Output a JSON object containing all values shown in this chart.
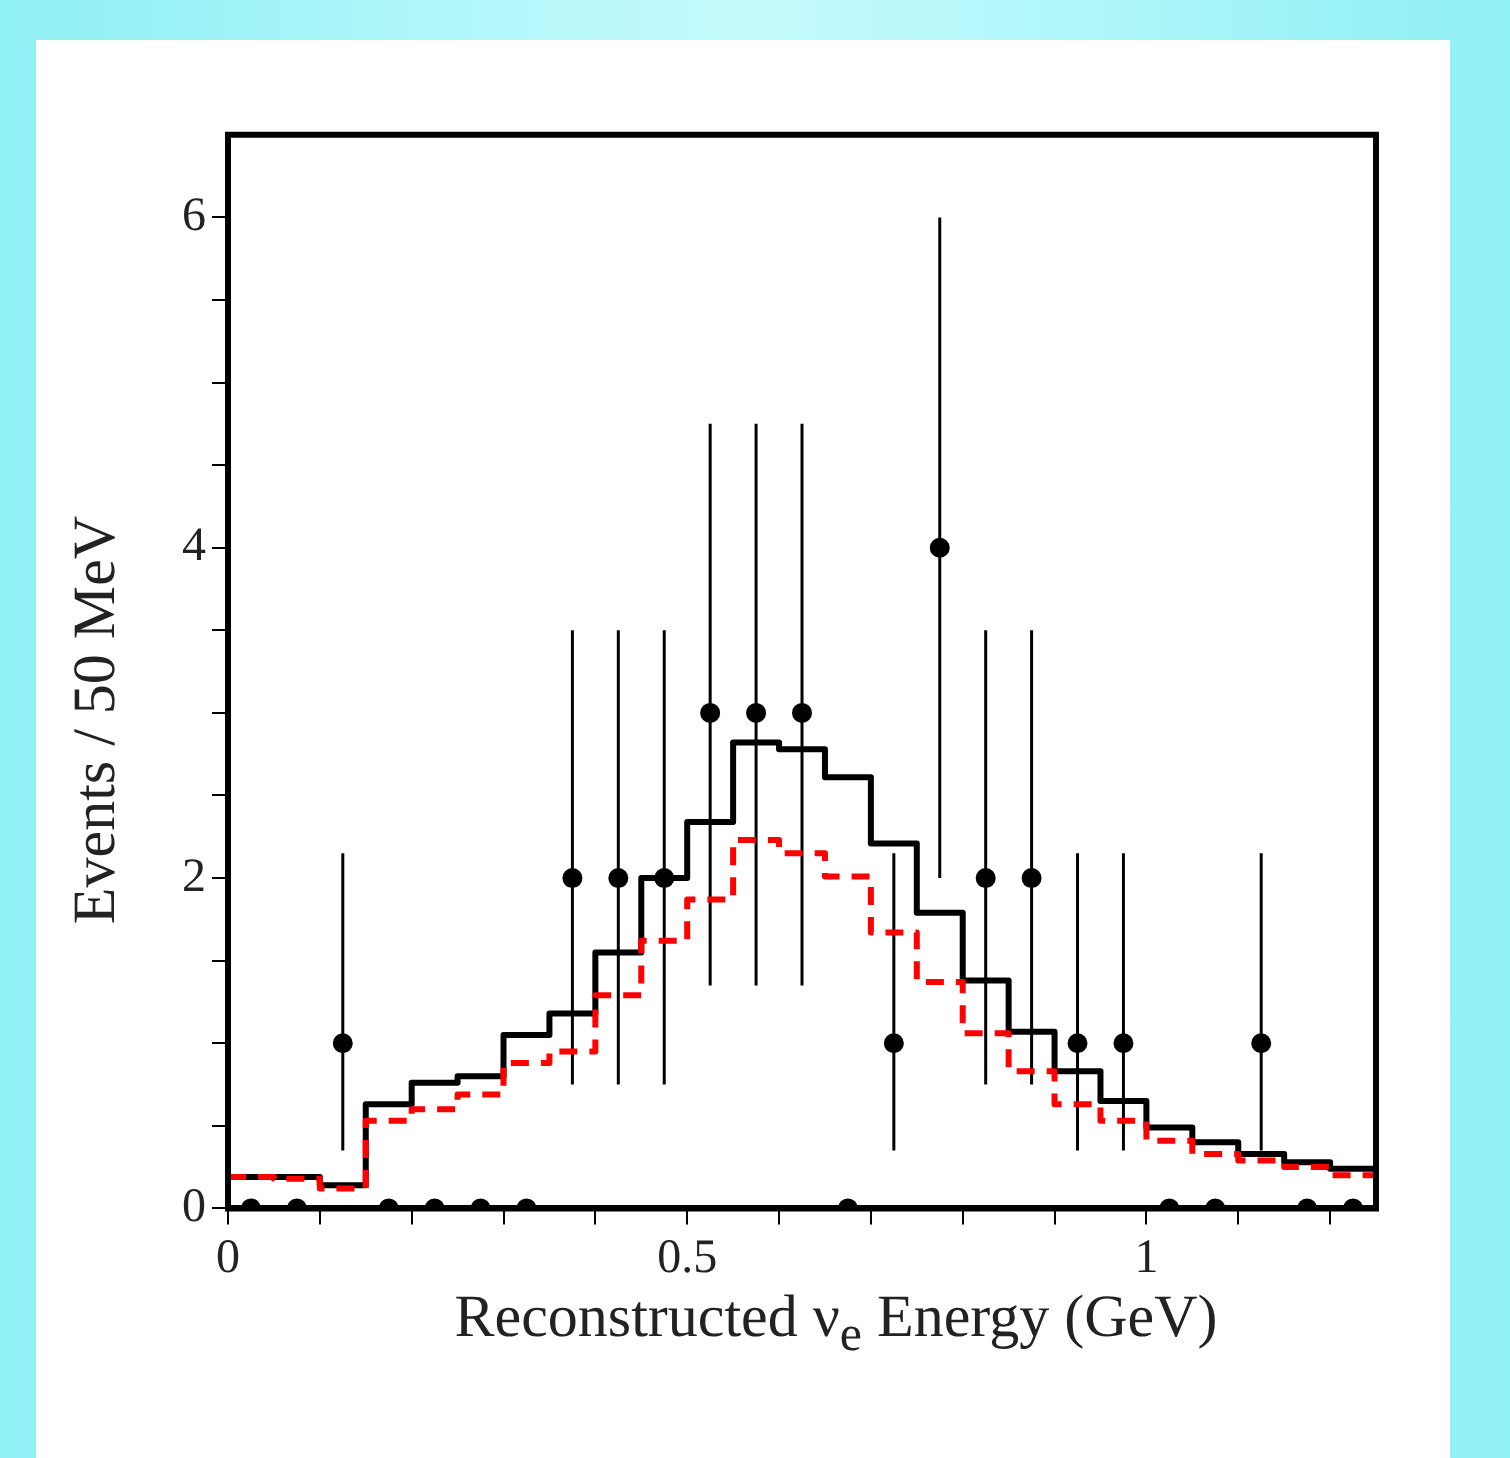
{
  "chart_data": {
    "type": "histogram",
    "xlabel": "Reconstructed ν$_{e}$ Energy (GeV)",
    "ylabel": "Events / 50 MeV",
    "bins": [
      0,
      0.05,
      0.1,
      0.15,
      0.2,
      0.25,
      0.3,
      0.35,
      0.4,
      0.45,
      0.5,
      0.55,
      0.6,
      0.65,
      0.7,
      0.75,
      0.8,
      0.85,
      0.9,
      0.95,
      1,
      1.05,
      1.1,
      1.15,
      1.2,
      1.25
    ],
    "series": [
      {
        "color": "#000000",
        "line_style": "solid",
        "values": [
          0.19,
          0.19,
          0.14,
          0.63,
          0.76,
          0.8,
          1.05,
          1.18,
          1.55,
          2.0,
          2.34,
          2.82,
          2.78,
          2.61,
          2.21,
          1.79,
          1.38,
          1.07,
          0.83,
          0.65,
          0.49,
          0.4,
          0.33,
          0.28,
          0.24
        ]
      },
      {
        "color": "#ff0000",
        "line_style": "dashed",
        "values": [
          0.19,
          0.18,
          0.12,
          0.53,
          0.6,
          0.69,
          0.88,
          0.95,
          1.29,
          1.62,
          1.87,
          2.23,
          2.15,
          2.01,
          1.67,
          1.37,
          1.06,
          0.83,
          0.63,
          0.53,
          0.41,
          0.33,
          0.29,
          0.25,
          0.2
        ]
      },
      {
        "type": "scatter",
        "color": "#000000",
        "marker": "circle",
        "x": [
          0.025,
          0.075,
          0.125,
          0.175,
          0.225,
          0.275,
          0.325,
          0.375,
          0.425,
          0.475,
          0.525,
          0.575,
          0.625,
          0.675,
          0.725,
          0.775,
          0.825,
          0.875,
          0.925,
          0.975,
          1.025,
          1.075,
          1.125,
          1.175,
          1.225
        ],
        "values": [
          0,
          0,
          1,
          0,
          0,
          0,
          0,
          2,
          2,
          2,
          3,
          3,
          3,
          0,
          1,
          4,
          2,
          2,
          1,
          1,
          0,
          0,
          1,
          0,
          0
        ],
        "errors": [
          null,
          null,
          [
            0.35,
            2.15
          ],
          null,
          null,
          null,
          null,
          [
            0.75,
            3.5
          ],
          [
            0.75,
            3.5
          ],
          [
            0.75,
            3.5
          ],
          [
            1.35,
            4.75
          ],
          [
            1.35,
            4.75
          ],
          [
            1.35,
            4.75
          ],
          null,
          [
            0.35,
            2.15
          ],
          [
            2.0,
            6.0
          ],
          [
            0.75,
            3.5
          ],
          [
            0.75,
            3.5
          ],
          [
            0.35,
            2.15
          ],
          [
            0.35,
            2.15
          ],
          null,
          null,
          [
            0.35,
            2.15
          ],
          null,
          null
        ]
      }
    ],
    "xlim": [
      0,
      1.25
    ],
    "xticks": [
      0,
      {
        "value": 0.1,
        "label": null
      },
      {
        "value": 0.2,
        "label": null
      },
      {
        "value": 0.3,
        "label": null
      },
      {
        "value": 0.4,
        "label": null
      },
      0.5,
      {
        "value": 0.6,
        "label": null
      },
      {
        "value": 0.7,
        "label": null
      },
      {
        "value": 0.8,
        "label": null
      },
      {
        "value": 0.9,
        "label": null
      },
      1,
      {
        "value": 1.1,
        "label": null
      },
      {
        "value": 1.2,
        "label": null
      }
    ],
    "ylim": [
      0,
      6.5
    ],
    "yticks": [
      0,
      {
        "value": 0.5,
        "label": null
      },
      {
        "value": 1,
        "label": null
      },
      {
        "value": 1.5,
        "label": null
      },
      2,
      {
        "value": 2.5,
        "label": null
      },
      {
        "value": 3,
        "label": null
      },
      {
        "value": 3.5,
        "label": null
      },
      4,
      {
        "value": 4.5,
        "label": null
      },
      {
        "value": 5,
        "label": null
      },
      {
        "value": 5.5,
        "label": null
      },
      6
    ],
    "grid": false,
    "legend": false
  }
}
